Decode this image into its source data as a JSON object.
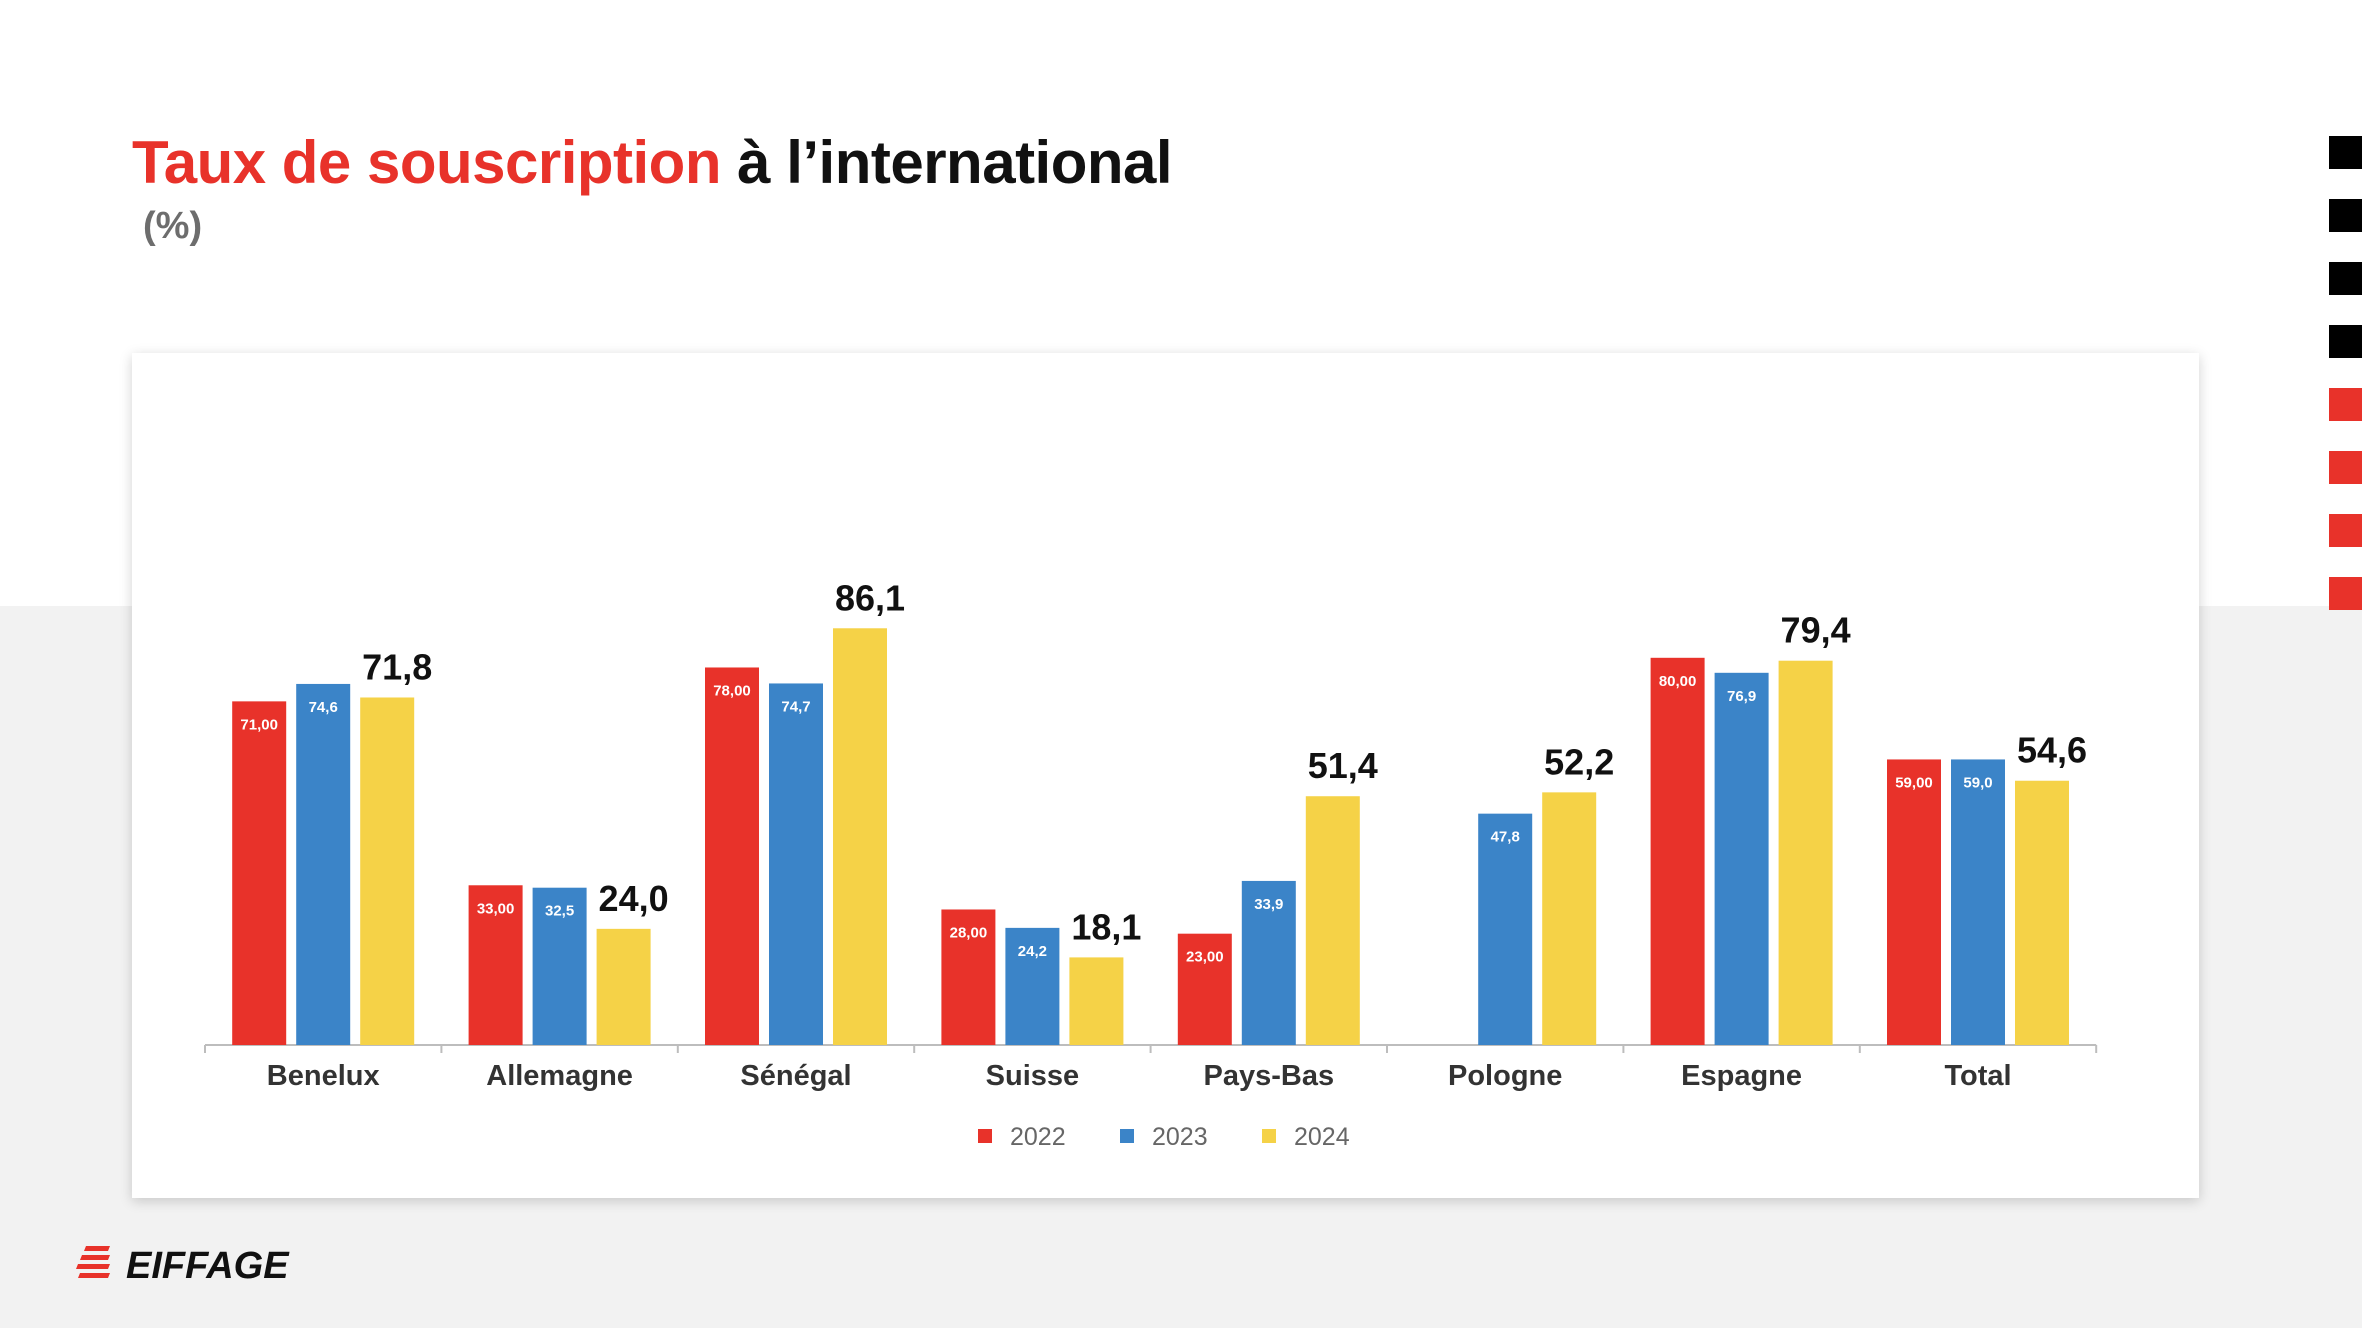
{
  "title": {
    "highlight": "Taux de souscription",
    "rest": " à l’international"
  },
  "subtitle": "(%)",
  "logo_text": "EIFFAGE",
  "colors": {
    "accent_red": "#e8322a",
    "series_2022": "#e8322a",
    "series_2023": "#3b84c8",
    "series_2024": "#f5d247",
    "square_dark": "#000000",
    "square_red": "#e8322a"
  },
  "decor_squares": [
    "dark",
    "dark",
    "dark",
    "dark",
    "red",
    "red",
    "red",
    "red"
  ],
  "chart_data": {
    "type": "bar",
    "categories": [
      "Benelux",
      "Allemagne",
      "Sénégal",
      "Suisse",
      "Pays-Bas",
      "Pologne",
      "Espagne",
      "Total"
    ],
    "series": [
      {
        "name": "2022",
        "values": [
          71.0,
          33.0,
          78.0,
          28.0,
          23.0,
          null,
          80.0,
          59.0
        ],
        "labels": [
          "71,00",
          "33,00",
          "78,00",
          "28,00",
          "23,00",
          "",
          "80,00",
          "59,00"
        ]
      },
      {
        "name": "2023",
        "values": [
          74.6,
          32.5,
          74.7,
          24.2,
          33.9,
          47.8,
          76.9,
          59.0
        ],
        "labels": [
          "74,6",
          "32,5",
          "74,7",
          "24,2",
          "33,9",
          "47,8",
          "76,9",
          "59,0"
        ]
      },
      {
        "name": "2024",
        "values": [
          71.8,
          24.0,
          86.1,
          18.1,
          51.4,
          52.2,
          79.4,
          54.6
        ],
        "labels": [
          "71,8",
          "24,0",
          "86,1",
          "18,1",
          "51,4",
          "52,2",
          "79,4",
          "54,6"
        ]
      }
    ],
    "ylim": [
      0,
      100
    ],
    "grid": false,
    "legend": "bottom-center"
  }
}
